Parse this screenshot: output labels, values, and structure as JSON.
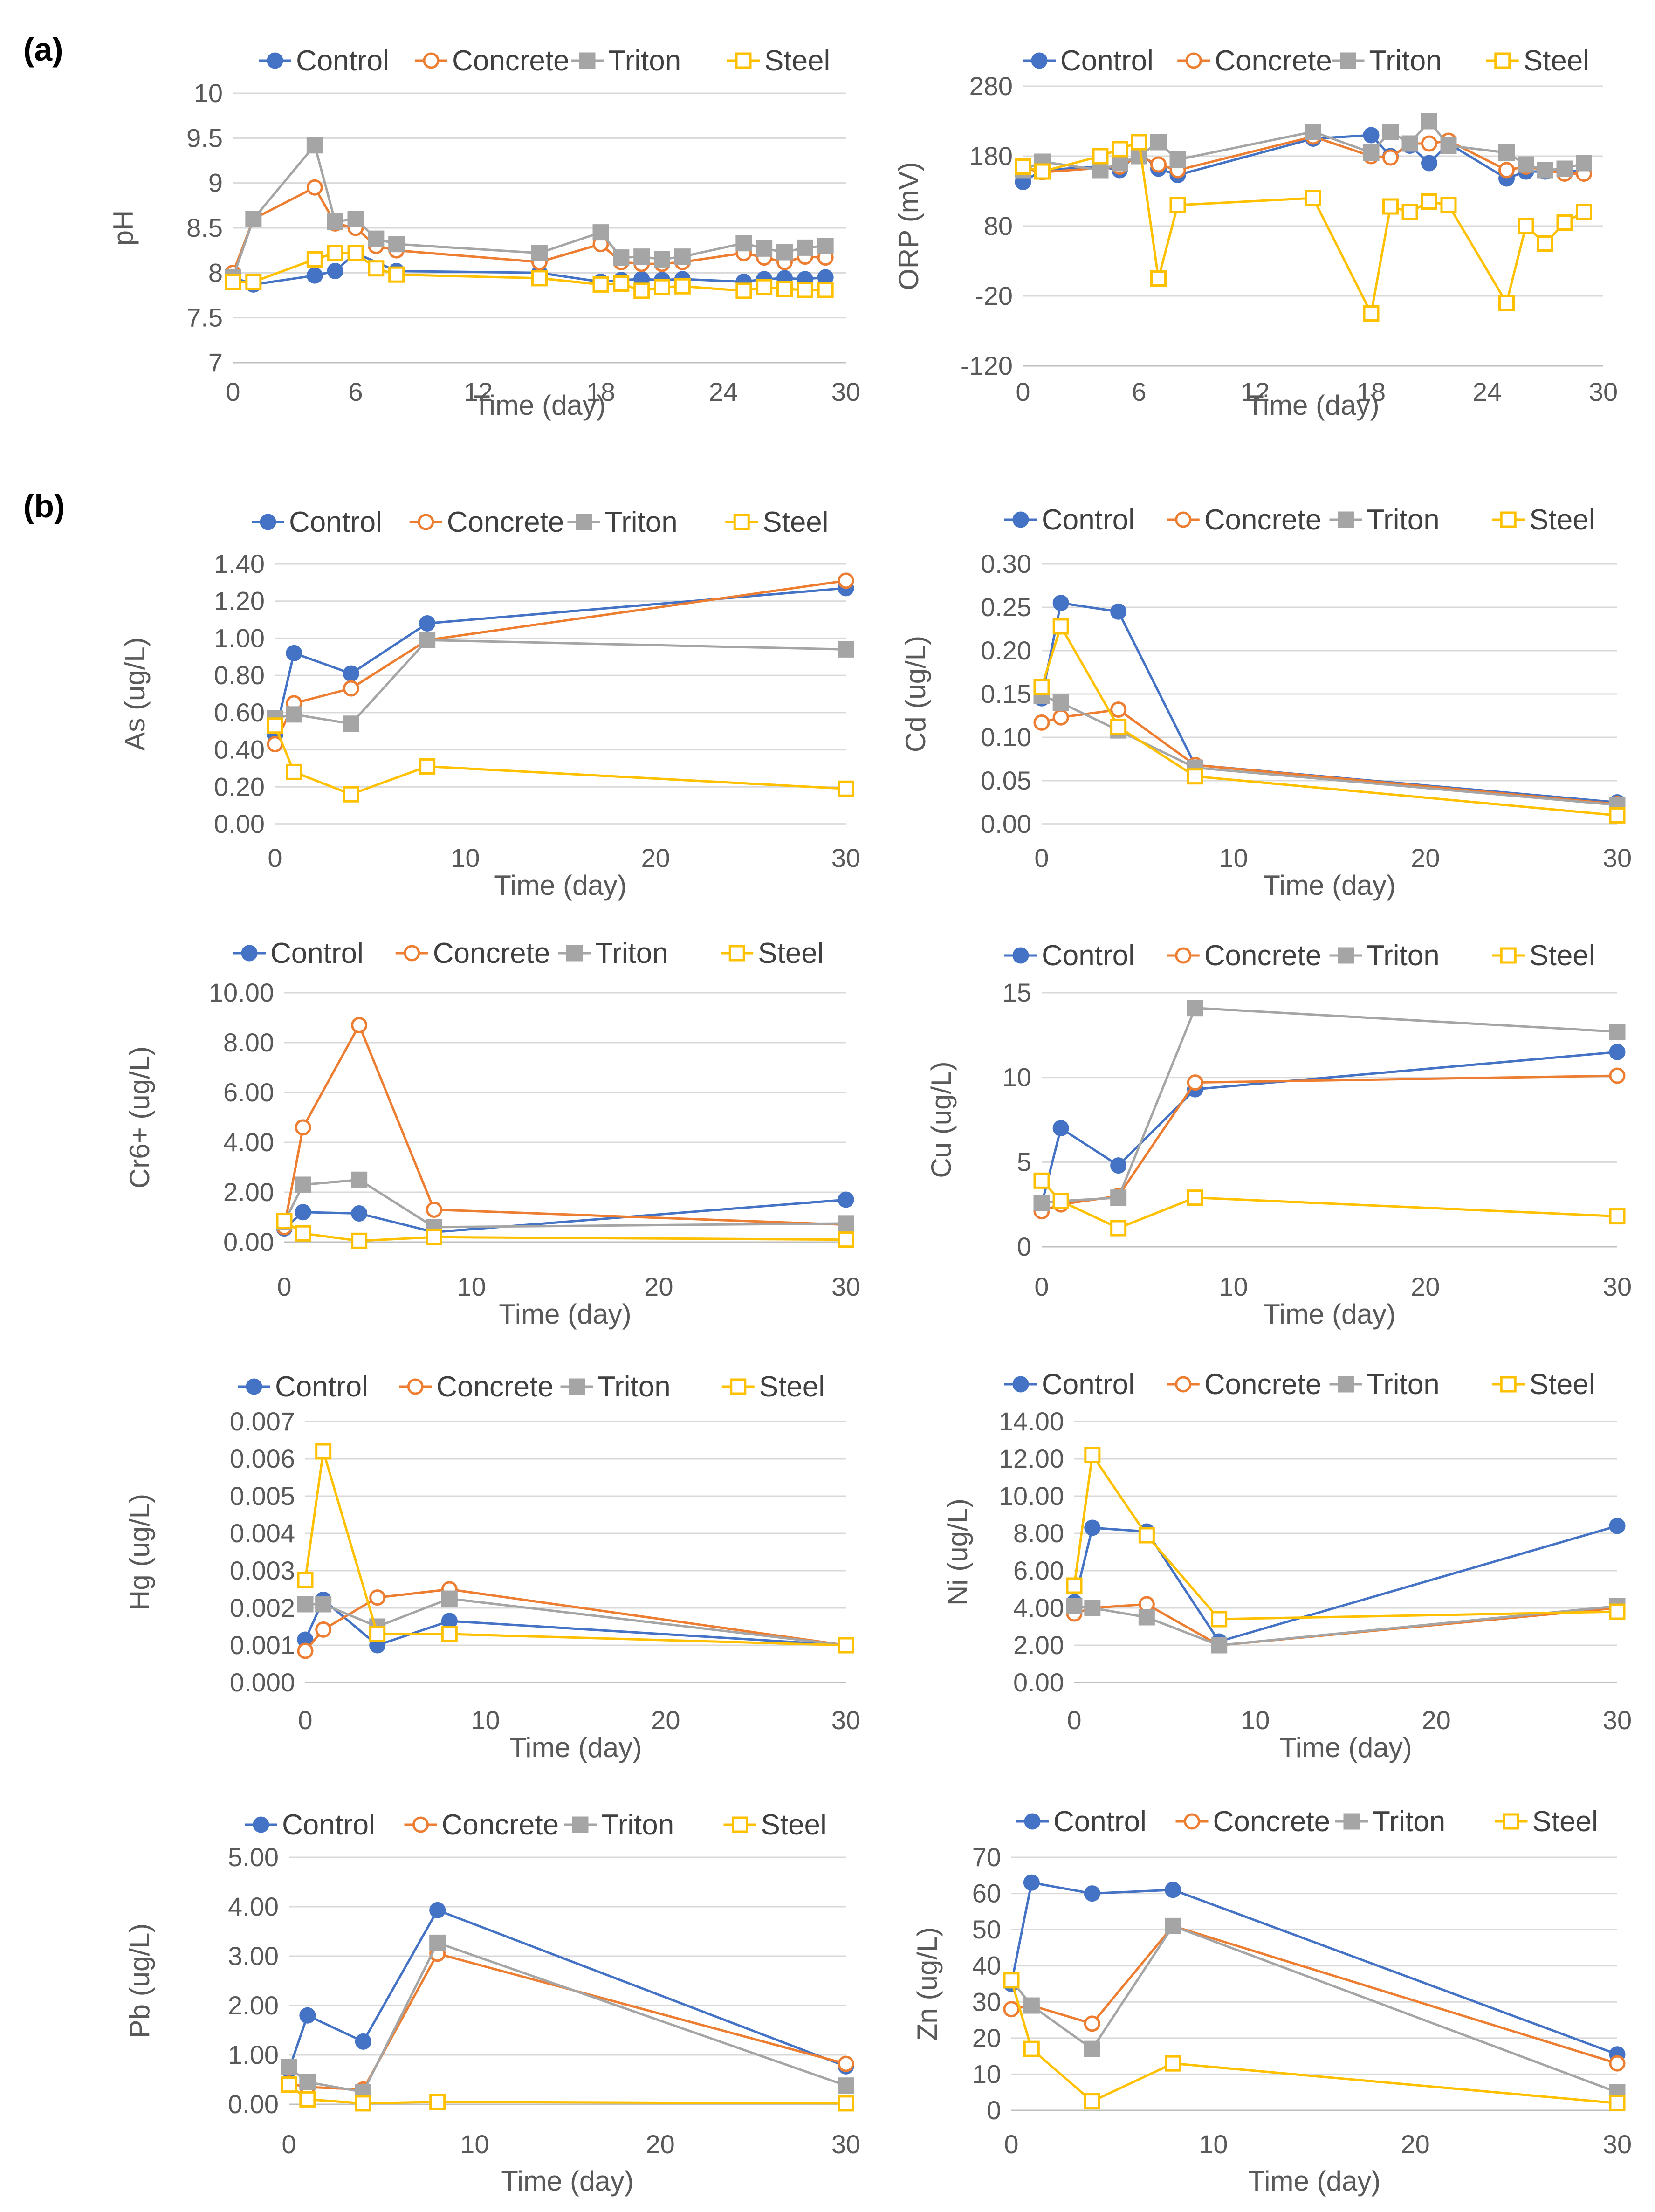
{
  "panel_labels": [
    "(a)",
    "(b)"
  ],
  "series_styles": [
    {
      "name": "Control",
      "color": "#4472C4",
      "marker": "circle",
      "filled": true
    },
    {
      "name": "Concrete",
      "color": "#ED7D31",
      "marker": "circle",
      "filled": false
    },
    {
      "name": "Triton",
      "color": "#A5A5A5",
      "marker": "square",
      "filled": true
    },
    {
      "name": "Steel",
      "color": "#FFC000",
      "marker": "square",
      "filled": false
    }
  ],
  "chart_data": [
    {
      "id": "ph",
      "type": "line",
      "ylabel": "pH",
      "xlabel": "Time (day)",
      "ylim": [
        7,
        10
      ],
      "yticks": [
        "7",
        "7.5",
        "8",
        "8.5",
        "9",
        "9.5",
        "10"
      ],
      "xlim": [
        0,
        30
      ],
      "xticks": [
        "0",
        "6",
        "12",
        "18",
        "24",
        "30"
      ],
      "series": [
        {
          "name": "Control",
          "x": [
            0,
            1,
            4,
            5,
            6,
            8,
            15,
            18,
            19,
            20,
            21,
            22,
            25,
            26,
            27,
            28,
            29
          ],
          "y": [
            7.95,
            7.87,
            7.97,
            8.02,
            8.22,
            8.02,
            8.0,
            7.9,
            7.92,
            7.93,
            7.92,
            7.93,
            7.9,
            7.93,
            7.94,
            7.93,
            7.95
          ]
        },
        {
          "name": "Concrete",
          "x": [
            0,
            1,
            4,
            5,
            6,
            7,
            8,
            15,
            18,
            19,
            20,
            21,
            22,
            25,
            26,
            27,
            28,
            29
          ],
          "y": [
            8.0,
            8.6,
            8.95,
            8.55,
            8.5,
            8.3,
            8.25,
            8.12,
            8.32,
            8.12,
            8.1,
            8.1,
            8.12,
            8.22,
            8.17,
            8.12,
            8.18,
            8.17
          ]
        },
        {
          "name": "Triton",
          "x": [
            0,
            1,
            4,
            5,
            6,
            7,
            8,
            15,
            18,
            19,
            20,
            21,
            22,
            25,
            26,
            27,
            28,
            29
          ],
          "y": [
            7.95,
            8.6,
            9.42,
            8.57,
            8.6,
            8.38,
            8.32,
            8.22,
            8.45,
            8.17,
            8.18,
            8.15,
            8.18,
            8.33,
            8.27,
            8.23,
            8.28,
            8.3
          ]
        },
        {
          "name": "Steel",
          "x": [
            0,
            1,
            4,
            5,
            6,
            7,
            8,
            15,
            18,
            19,
            20,
            21,
            22,
            25,
            26,
            27,
            28,
            29
          ],
          "y": [
            7.9,
            7.9,
            8.15,
            8.22,
            8.22,
            8.05,
            7.98,
            7.94,
            7.87,
            7.88,
            7.8,
            7.84,
            7.85,
            7.8,
            7.84,
            7.82,
            7.81,
            7.81
          ]
        }
      ]
    },
    {
      "id": "orp",
      "type": "line",
      "ylabel": "ORP (mV)",
      "xlabel": "Time (day)",
      "ylim": [
        -120,
        280
      ],
      "yticks": [
        "-120",
        "-20",
        "80",
        "180",
        "280"
      ],
      "xlim": [
        0,
        30
      ],
      "xticks": [
        "0",
        "6",
        "12",
        "18",
        "24",
        "30"
      ],
      "series": [
        {
          "name": "Control",
          "x": [
            0,
            1,
            4,
            5,
            6,
            7,
            8,
            15,
            18,
            19,
            20,
            21,
            22,
            25,
            26,
            27,
            28,
            29
          ],
          "y": [
            143,
            160,
            165,
            160,
            185,
            162,
            153,
            205,
            210,
            180,
            195,
            170,
            198,
            148,
            158,
            158,
            160,
            158
          ]
        },
        {
          "name": "Concrete",
          "x": [
            0,
            1,
            4,
            5,
            6,
            7,
            8,
            15,
            18,
            19,
            20,
            21,
            22,
            25,
            26,
            27,
            28,
            29
          ],
          "y": [
            163,
            157,
            163,
            165,
            180,
            168,
            160,
            208,
            180,
            178,
            198,
            198,
            202,
            160,
            165,
            160,
            155,
            155
          ]
        },
        {
          "name": "Triton",
          "x": [
            0,
            1,
            4,
            5,
            6,
            7,
            8,
            15,
            18,
            19,
            20,
            21,
            22,
            25,
            26,
            27,
            28,
            29
          ],
          "y": [
            160,
            172,
            160,
            170,
            180,
            200,
            175,
            215,
            185,
            215,
            198,
            230,
            195,
            185,
            168,
            160,
            162,
            170
          ]
        },
        {
          "name": "Steel",
          "x": [
            0,
            1,
            4,
            5,
            6,
            7,
            8,
            15,
            18,
            19,
            20,
            21,
            22,
            25,
            26,
            27,
            28,
            29
          ],
          "y": [
            165,
            158,
            180,
            190,
            200,
            5,
            110,
            120,
            -45,
            108,
            100,
            115,
            110,
            -30,
            80,
            55,
            85,
            100
          ]
        }
      ]
    },
    {
      "id": "as",
      "type": "line",
      "ylabel": "As (ug/L)",
      "xlabel": "Time (day)",
      "ylim": [
        0,
        1.4
      ],
      "yticks": [
        "0.00",
        "0.20",
        "0.40",
        "0.60",
        "0.80",
        "1.00",
        "1.20",
        "1.40"
      ],
      "xlim": [
        0,
        30
      ],
      "xticks": [
        "0",
        "10",
        "20",
        "30"
      ],
      "series": [
        {
          "name": "Control",
          "x": [
            0,
            1,
            4,
            8,
            30
          ],
          "y": [
            0.48,
            0.92,
            0.81,
            1.08,
            1.27
          ]
        },
        {
          "name": "Concrete",
          "x": [
            0,
            1,
            4,
            8,
            30
          ],
          "y": [
            0.43,
            0.65,
            0.73,
            0.99,
            1.31
          ]
        },
        {
          "name": "Triton",
          "x": [
            0,
            1,
            4,
            8,
            30
          ],
          "y": [
            0.57,
            0.59,
            0.54,
            0.99,
            0.94
          ]
        },
        {
          "name": "Steel",
          "x": [
            0,
            1,
            4,
            8,
            30
          ],
          "y": [
            0.53,
            0.28,
            0.16,
            0.31,
            0.19
          ]
        }
      ]
    },
    {
      "id": "cd",
      "type": "line",
      "ylabel": "Cd (ug/L)",
      "xlabel": "Time (day)",
      "ylim": [
        0,
        0.3
      ],
      "yticks": [
        "0.00",
        "0.05",
        "0.10",
        "0.15",
        "0.20",
        "0.25",
        "0.30"
      ],
      "xlim": [
        0,
        30
      ],
      "xticks": [
        "0",
        "10",
        "20",
        "30"
      ],
      "series": [
        {
          "name": "Control",
          "x": [
            0,
            1,
            4,
            8,
            30
          ],
          "y": [
            0.145,
            0.255,
            0.245,
            0.068,
            0.025
          ]
        },
        {
          "name": "Concrete",
          "x": [
            0,
            1,
            4,
            8,
            30
          ],
          "y": [
            0.117,
            0.123,
            0.132,
            0.068,
            0.023
          ]
        },
        {
          "name": "Triton",
          "x": [
            0,
            1,
            4,
            8,
            30
          ],
          "y": [
            0.148,
            0.14,
            0.108,
            0.065,
            0.022
          ]
        },
        {
          "name": "Steel",
          "x": [
            0,
            1,
            4,
            8,
            30
          ],
          "y": [
            0.158,
            0.228,
            0.112,
            0.055,
            0.01
          ]
        }
      ]
    },
    {
      "id": "cr",
      "type": "line",
      "ylabel": "Cr6+ (ug/L)",
      "xlabel": "Time (day)",
      "ylim": [
        0,
        10
      ],
      "yticks": [
        "0.00",
        "2.00",
        "4.00",
        "6.00",
        "8.00",
        "10.00"
      ],
      "xlim": [
        0,
        30
      ],
      "xticks": [
        "0",
        "10",
        "20",
        "30"
      ],
      "series": [
        {
          "name": "Control",
          "x": [
            0,
            1,
            4,
            8,
            30
          ],
          "y": [
            0.55,
            1.2,
            1.15,
            0.4,
            1.7
          ]
        },
        {
          "name": "Concrete",
          "x": [
            0,
            1,
            4,
            8,
            30
          ],
          "y": [
            0.6,
            4.6,
            8.7,
            1.3,
            0.7
          ]
        },
        {
          "name": "Triton",
          "x": [
            0,
            1,
            4,
            8,
            30
          ],
          "y": [
            0.8,
            2.3,
            2.5,
            0.6,
            0.75
          ]
        },
        {
          "name": "Steel",
          "x": [
            0,
            1,
            4,
            8,
            30
          ],
          "y": [
            0.85,
            0.35,
            0.05,
            0.2,
            0.1
          ]
        }
      ]
    },
    {
      "id": "cu",
      "type": "line",
      "ylabel": "Cu (ug/L)",
      "xlabel": "Time (day)",
      "ylim": [
        0,
        15
      ],
      "yticks": [
        "0",
        "5",
        "10",
        "15"
      ],
      "xlim": [
        0,
        30
      ],
      "xticks": [
        "0",
        "10",
        "20",
        "30"
      ],
      "series": [
        {
          "name": "Control",
          "x": [
            0,
            1,
            4,
            8,
            30
          ],
          "y": [
            2.5,
            7.0,
            4.8,
            9.3,
            11.5
          ]
        },
        {
          "name": "Concrete",
          "x": [
            0,
            1,
            4,
            8,
            30
          ],
          "y": [
            2.1,
            2.5,
            3.0,
            9.7,
            10.1
          ]
        },
        {
          "name": "Triton",
          "x": [
            0,
            1,
            4,
            8,
            30
          ],
          "y": [
            2.6,
            2.7,
            2.9,
            14.1,
            12.7
          ]
        },
        {
          "name": "Steel",
          "x": [
            0,
            1,
            4,
            8,
            30
          ],
          "y": [
            3.9,
            2.7,
            1.1,
            2.9,
            1.8
          ]
        }
      ]
    },
    {
      "id": "hg",
      "type": "line",
      "ylabel": "Hg (ug/L)",
      "xlabel": "Time (day)",
      "ylim": [
        0,
        0.007
      ],
      "yticks": [
        "0.000",
        "0.001",
        "0.002",
        "0.003",
        "0.004",
        "0.005",
        "0.006",
        "0.007"
      ],
      "xlim": [
        0,
        30
      ],
      "xticks": [
        "0",
        "10",
        "20",
        "30"
      ],
      "series": [
        {
          "name": "Control",
          "x": [
            0,
            1,
            4,
            8,
            30
          ],
          "y": [
            0.00115,
            0.00222,
            0.001,
            0.00165,
            0.001
          ]
        },
        {
          "name": "Concrete",
          "x": [
            0,
            1,
            4,
            8,
            30
          ],
          "y": [
            0.00085,
            0.00142,
            0.00228,
            0.0025,
            0.001
          ]
        },
        {
          "name": "Triton",
          "x": [
            0,
            1,
            4,
            8,
            30
          ],
          "y": [
            0.0021,
            0.0021,
            0.0015,
            0.00225,
            0.001
          ]
        },
        {
          "name": "Steel",
          "x": [
            0,
            1,
            4,
            8,
            30
          ],
          "y": [
            0.00275,
            0.0062,
            0.0013,
            0.0013,
            0.001
          ]
        }
      ]
    },
    {
      "id": "ni",
      "type": "line",
      "ylabel": "Ni (ug/L)",
      "xlabel": "Time (day)",
      "ylim": [
        0,
        14
      ],
      "yticks": [
        "0.00",
        "2.00",
        "4.00",
        "6.00",
        "8.00",
        "10.00",
        "12.00",
        "14.00"
      ],
      "xlim": [
        0,
        30
      ],
      "xticks": [
        "0",
        "10",
        "20",
        "30"
      ],
      "series": [
        {
          "name": "Control",
          "x": [
            0,
            1,
            4,
            8,
            30
          ],
          "y": [
            4.3,
            8.3,
            8.1,
            2.2,
            8.4
          ]
        },
        {
          "name": "Concrete",
          "x": [
            0,
            1,
            4,
            8,
            30
          ],
          "y": [
            3.7,
            4.0,
            4.2,
            2.0,
            4.0
          ]
        },
        {
          "name": "Triton",
          "x": [
            0,
            1,
            4,
            8,
            30
          ],
          "y": [
            4.1,
            4.0,
            3.5,
            2.0,
            4.1
          ]
        },
        {
          "name": "Steel",
          "x": [
            0,
            1,
            4,
            8,
            30
          ],
          "y": [
            5.2,
            12.2,
            7.9,
            3.4,
            3.8
          ]
        }
      ]
    },
    {
      "id": "pb",
      "type": "line",
      "ylabel": "Pb (ug/L)",
      "xlabel": "Time (day)",
      "ylim": [
        0,
        5
      ],
      "yticks": [
        "0.00",
        "1.00",
        "2.00",
        "3.00",
        "4.00",
        "5.00"
      ],
      "xlim": [
        0,
        30
      ],
      "xticks": [
        "0",
        "10",
        "20",
        "30"
      ],
      "series": [
        {
          "name": "Control",
          "x": [
            0,
            1,
            4,
            8,
            30
          ],
          "y": [
            0.7,
            1.8,
            1.27,
            3.93,
            0.77
          ]
        },
        {
          "name": "Concrete",
          "x": [
            0,
            1,
            4,
            8,
            30
          ],
          "y": [
            0.42,
            0.35,
            0.3,
            3.05,
            0.82
          ]
        },
        {
          "name": "Triton",
          "x": [
            0,
            1,
            4,
            8,
            30
          ],
          "y": [
            0.75,
            0.45,
            0.25,
            3.27,
            0.38
          ]
        },
        {
          "name": "Steel",
          "x": [
            0,
            1,
            4,
            8,
            30
          ],
          "y": [
            0.4,
            0.1,
            0.02,
            0.05,
            0.02
          ]
        }
      ]
    },
    {
      "id": "zn",
      "type": "line",
      "ylabel": "Zn (ug/L)",
      "xlabel": "Time (day)",
      "ylim": [
        0,
        70
      ],
      "yticks": [
        "0",
        "10",
        "20",
        "30",
        "40",
        "50",
        "60",
        "70"
      ],
      "xlim": [
        0,
        30
      ],
      "xticks": [
        "0",
        "10",
        "20",
        "30"
      ],
      "series": [
        {
          "name": "Control",
          "x": [
            0,
            1,
            4,
            8,
            30
          ],
          "y": [
            35,
            63,
            60,
            61,
            15.5
          ]
        },
        {
          "name": "Concrete",
          "x": [
            0,
            1,
            4,
            8,
            30
          ],
          "y": [
            28,
            29,
            24,
            51,
            13
          ]
        },
        {
          "name": "Triton",
          "x": [
            0,
            1,
            4,
            8,
            30
          ],
          "y": [
            36,
            29,
            17,
            51,
            5
          ]
        },
        {
          "name": "Steel",
          "x": [
            0,
            1,
            4,
            8,
            30
          ],
          "y": [
            36,
            17,
            2.5,
            13,
            2
          ]
        }
      ]
    }
  ]
}
